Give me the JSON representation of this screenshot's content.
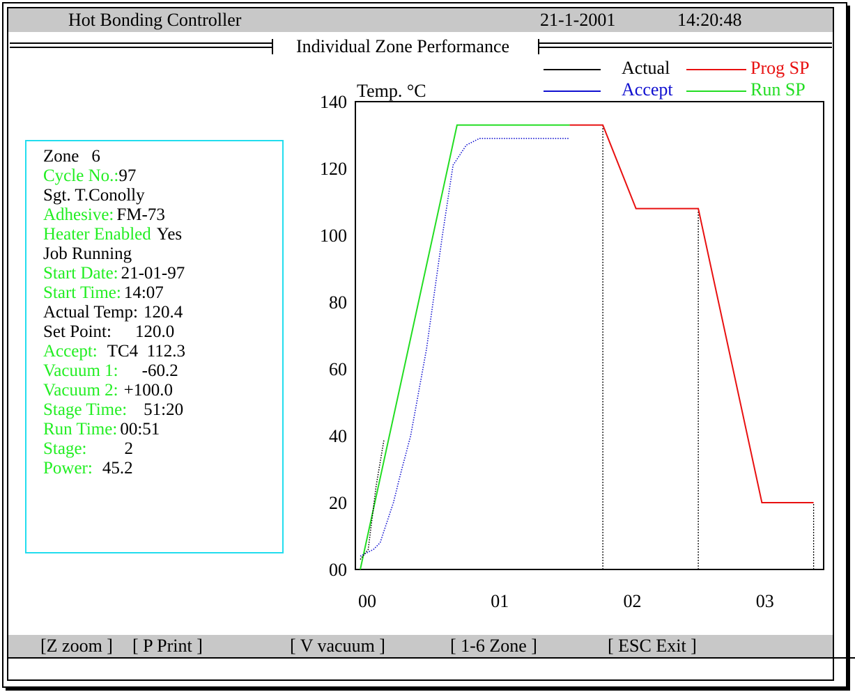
{
  "header": {
    "app_title": "Hot Bonding Controller",
    "date": "21-1-2001",
    "time": "14:20:48",
    "subtitle": "Individual Zone Performance"
  },
  "legend": {
    "actual": "Actual",
    "prog_sp": "Prog SP",
    "accept": "Accept",
    "run_sp": "Run SP"
  },
  "info": {
    "zone_label": "Zone",
    "zone_value": "6",
    "cycle_label": "Cycle No.:",
    "cycle_value": "97",
    "operator": "Sgt. T.Conolly",
    "adhesive_label": "Adhesive:",
    "adhesive_value": "FM-73",
    "heater_label": "Heater Enabled",
    "heater_value": "Yes",
    "job_status": "Job Running",
    "start_date_label": "Start Date:",
    "start_date_value": "21-01-97",
    "start_time_label": "Start Time:",
    "start_time_value": "14:07",
    "actual_temp_label": "Actual Temp:",
    "actual_temp_value": "120.4",
    "set_point_label": "Set Point:",
    "set_point_value": "120.0",
    "accept_label": "Accept:",
    "accept_value": "TC4  112.3",
    "vacuum1_label": "Vacuum 1:",
    "vacuum1_value": "-60.2",
    "vacuum2_label": "Vacuum 2:",
    "vacuum2_value": "+100.0",
    "stage_time_label": "Stage Time:",
    "stage_time_value": "51:20",
    "run_time_label": "Run Time:",
    "run_time_value": "00:51",
    "stage_label": "Stage:",
    "stage_value": "2",
    "power_label": "Power:",
    "power_value": "45.2"
  },
  "chart_data": {
    "type": "line",
    "ylabel": "Temp. °C",
    "y_tick_labels": [
      "00",
      "20",
      "40",
      "60",
      "80",
      "100",
      "120",
      "140"
    ],
    "y_ticks": [
      0,
      20,
      40,
      60,
      80,
      100,
      120,
      140
    ],
    "x_tick_labels": [
      "00",
      "01",
      "02",
      "03"
    ],
    "x_ticks": [
      0,
      1,
      2,
      3
    ],
    "xlim": [
      0,
      3.5
    ],
    "ylim": [
      0,
      140
    ],
    "grid": false,
    "legend_position": "top-right",
    "stage_markers_x": [
      1.83,
      2.55,
      3.42
    ],
    "series": [
      {
        "name": "Run SP",
        "color": "#22dd22",
        "style": "solid",
        "x": [
          0,
          0.73,
          1.58
        ],
        "y": [
          0,
          133,
          133
        ]
      },
      {
        "name": "Prog SP",
        "color": "#e81010",
        "style": "solid",
        "x": [
          1.58,
          1.83,
          2.08,
          2.55,
          3.03,
          3.42
        ],
        "y": [
          133,
          133,
          108,
          108,
          20,
          20
        ]
      },
      {
        "name": "Accept",
        "color": "#1010d0",
        "style": "dotted",
        "x": [
          0,
          0.1,
          0.15,
          0.2,
          0.25,
          0.3,
          0.38,
          0.5,
          0.62,
          0.7,
          0.8,
          0.9,
          1.1,
          1.3,
          1.58
        ],
        "y": [
          4,
          6,
          8,
          14,
          20,
          28,
          40,
          66,
          100,
          121,
          127,
          129,
          129,
          129,
          129
        ]
      },
      {
        "name": "Actual",
        "color": "#000000",
        "style": "dotted",
        "x": [
          0,
          0.06,
          0.12,
          0.18
        ],
        "y": [
          3,
          6,
          25,
          39
        ]
      }
    ]
  },
  "footer": {
    "zoom": "[Z  zoom ]",
    "print": "[ P  Print  ]",
    "vacuum": "[  V  vacuum  ]",
    "zone": "[   1-6  Zone   ]",
    "exit": "[   ESC  Exit   ]"
  }
}
